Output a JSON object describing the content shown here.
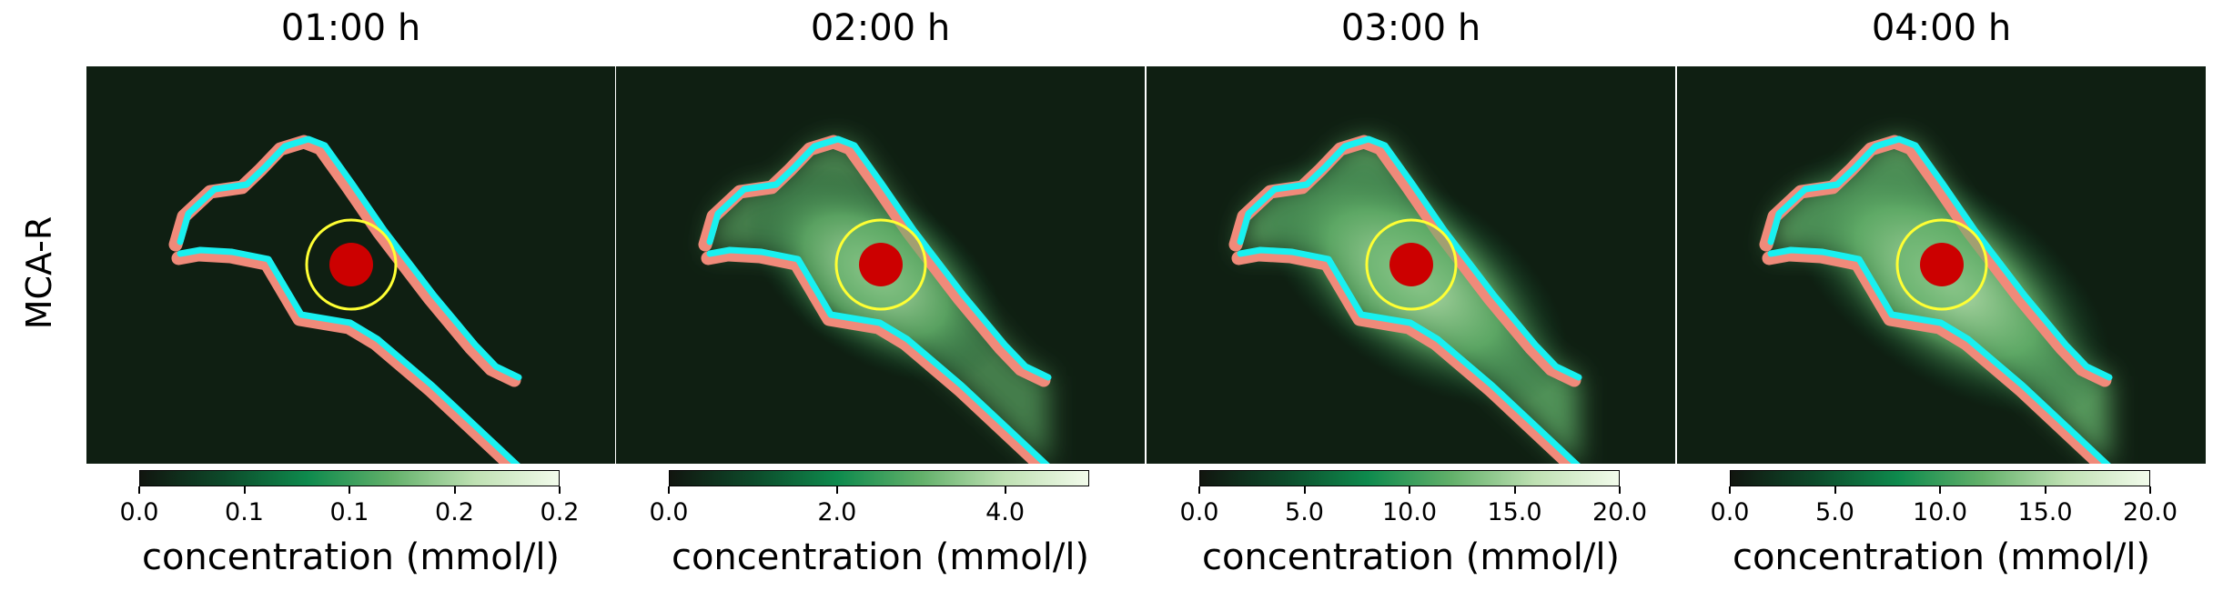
{
  "row_label": "MCA-R",
  "colors": {
    "background_dark": "#0f1f12",
    "colormap": [
      "#11150f",
      "#0d4a2a",
      "#0e8a4d",
      "#62b06a",
      "#bfe1b3",
      "#f2fbeb"
    ],
    "artery_wall": "#f08a7a",
    "vessel_outline": "#19f0f0",
    "region_circle": "#ffff33",
    "core_circle": "#cc0000"
  },
  "chart_data": [
    {
      "type": "heatmap",
      "title": "01:00 h",
      "colorbar": {
        "label": "concentration (mmol/l)",
        "tick_labels": [
          "0.0",
          "0.1",
          "0.1",
          "0.2",
          "0.2"
        ],
        "tick_values": [
          0.0,
          0.05,
          0.1,
          0.15,
          0.2
        ],
        "range": [
          0.0,
          0.2
        ]
      },
      "relative_intensity": 0.0
    },
    {
      "type": "heatmap",
      "title": "02:00 h",
      "colorbar": {
        "label": "concentration (mmol/l)",
        "tick_labels": [
          "0.0",
          "2.0",
          "4.0"
        ],
        "tick_values": [
          0.0,
          2.0,
          4.0
        ],
        "range": [
          0.0,
          5.0
        ]
      },
      "relative_intensity": 0.55
    },
    {
      "type": "heatmap",
      "title": "03:00 h",
      "colorbar": {
        "label": "concentration (mmol/l)",
        "tick_labels": [
          "0.0",
          "5.0",
          "10.0",
          "15.0",
          "20.0"
        ],
        "tick_values": [
          0.0,
          5.0,
          10.0,
          15.0,
          20.0
        ],
        "range": [
          0.0,
          20.0
        ]
      },
      "relative_intensity": 0.8
    },
    {
      "type": "heatmap",
      "title": "04:00 h",
      "colorbar": {
        "label": "concentration (mmol/l)",
        "tick_labels": [
          "0.0",
          "5.0",
          "10.0",
          "15.0",
          "20.0"
        ],
        "tick_values": [
          0.0,
          5.0,
          10.0,
          15.0,
          20.0
        ],
        "range": [
          0.0,
          20.0
        ]
      },
      "relative_intensity": 0.9
    }
  ]
}
